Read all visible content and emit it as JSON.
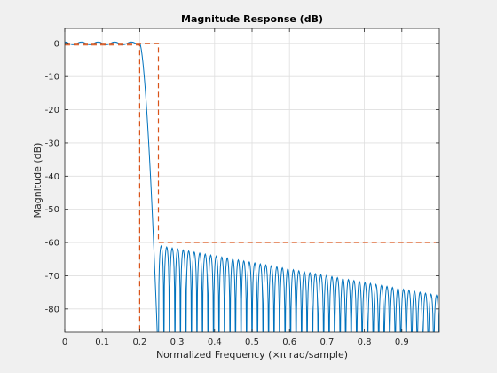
{
  "chart_data": {
    "type": "line",
    "title": "Magnitude Response (dB)",
    "xlabel": "Normalized Frequency (×π rad/sample)",
    "ylabel": "Magnitude (dB)",
    "xlim": [
      0,
      1
    ],
    "ylim": [
      -87,
      4.5
    ],
    "x_ticks": [
      "0",
      "0.1",
      "0.2",
      "0.3",
      "0.4",
      "0.5",
      "0.6",
      "0.7",
      "0.8",
      "0.9"
    ],
    "x_tick_values": [
      0,
      0.1,
      0.2,
      0.3,
      0.4,
      0.5,
      0.6,
      0.7,
      0.8,
      0.9
    ],
    "y_ticks": [
      "0",
      "-10",
      "-20",
      "-30",
      "-40",
      "-50",
      "-60",
      "-70",
      "-80"
    ],
    "y_tick_values": [
      0,
      -10,
      -20,
      -30,
      -40,
      -50,
      -60,
      -70,
      -80
    ],
    "grid": true,
    "series": [
      {
        "role": "magnitude-response",
        "color": "#0072bd",
        "passband_edge": 0.2,
        "stopband_edge": 0.25,
        "passband_ripple_db": 0.4,
        "stopband_lobe_peaks": [
          {
            "x": 0.255,
            "y": -61
          },
          {
            "x": 0.4,
            "y": -64
          },
          {
            "x": 0.6,
            "y": -68
          },
          {
            "x": 0.8,
            "y": -72
          },
          {
            "x": 1.0,
            "y": -76
          }
        ],
        "stopband_floor": -87,
        "stopband_lobe_count": 51
      },
      {
        "role": "specification-mask",
        "color": "#d95319",
        "style": "dashed",
        "upper": {
          "x": [
            0,
            0.25,
            0.25,
            1.0
          ],
          "y": [
            0,
            0,
            -60,
            -60
          ]
        },
        "lower": {
          "x": [
            0,
            0.2,
            0.2
          ],
          "y": [
            -0.5,
            -0.5,
            -87
          ]
        }
      }
    ]
  }
}
